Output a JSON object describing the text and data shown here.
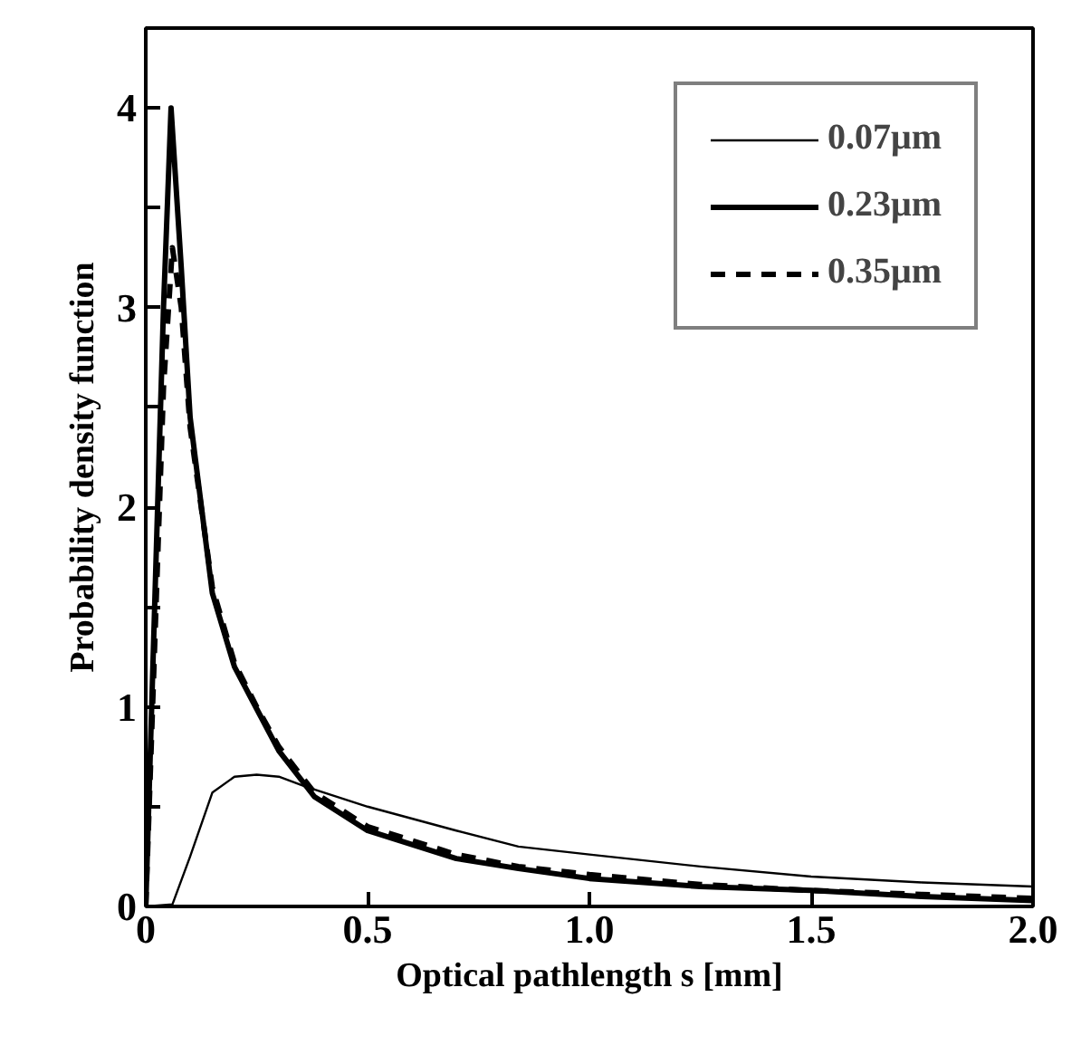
{
  "chart_data": {
    "type": "line",
    "xlabel": "Optical pathlength s [mm]",
    "ylabel": "Probability density function",
    "xlim": [
      0,
      2.0
    ],
    "ylim": [
      0,
      4.4
    ],
    "xticks": [
      0,
      0.5,
      {
        "value": 1.0,
        "label": "1.0"
      },
      1.5,
      {
        "value": 2.0,
        "label": "2.0"
      }
    ],
    "yticks": [
      0,
      {
        "value": 0.5,
        "label": null
      },
      1,
      {
        "value": 1.5,
        "label": null
      },
      2,
      {
        "value": 2.5,
        "label": null
      },
      3,
      {
        "value": 3.5,
        "label": null
      },
      4
    ],
    "legend": "top right",
    "grid": false,
    "series": [
      {
        "name": "0.07μm",
        "color": "#000000",
        "line_style": "solid",
        "x": [
          0,
          0.06,
          0.1,
          0.15,
          0.2,
          0.25,
          0.3,
          0.36,
          0.5,
          0.7,
          0.84,
          1.0,
          1.25,
          1.5,
          1.75,
          2.0
        ],
        "values": [
          0,
          0.01,
          0.25,
          0.57,
          0.65,
          0.66,
          0.65,
          0.6,
          0.5,
          0.38,
          0.3,
          0.26,
          0.2,
          0.15,
          0.12,
          0.1
        ]
      },
      {
        "name": "0.23μm",
        "color": "#000000",
        "line_style": "solid",
        "x": [
          0,
          0.02,
          0.04,
          0.057,
          0.08,
          0.1,
          0.15,
          0.2,
          0.25,
          0.3,
          0.38,
          0.5,
          0.7,
          0.84,
          1.0,
          1.25,
          1.5,
          1.75,
          2.0
        ],
        "values": [
          0,
          1.5,
          3.0,
          4.0,
          3.2,
          2.45,
          1.57,
          1.2,
          0.99,
          0.78,
          0.55,
          0.38,
          0.24,
          0.19,
          0.14,
          0.1,
          0.08,
          0.05,
          0.03
        ]
      },
      {
        "name": "0.35μm",
        "color": "#000000",
        "line_style": "dashed",
        "x": [
          0,
          0.02,
          0.04,
          0.06,
          0.08,
          0.1,
          0.15,
          0.2,
          0.25,
          0.3,
          0.38,
          0.5,
          0.7,
          0.84,
          1.0,
          1.25,
          1.5,
          1.75,
          2.0
        ],
        "values": [
          0,
          1.3,
          2.6,
          3.3,
          3.0,
          2.4,
          1.6,
          1.22,
          1.0,
          0.8,
          0.57,
          0.4,
          0.26,
          0.2,
          0.16,
          0.11,
          0.08,
          0.06,
          0.04
        ]
      }
    ]
  }
}
